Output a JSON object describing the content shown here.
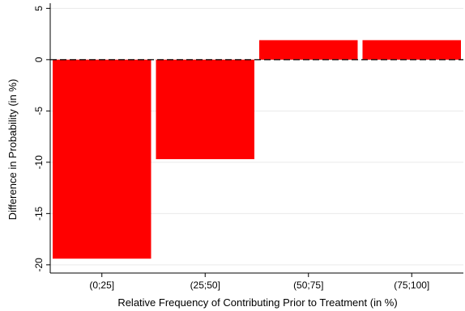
{
  "chart_data": {
    "type": "bar",
    "title": "",
    "xlabel": "Relative Frequency of Contributing Prior to Treatment (in %)",
    "ylabel": "Difference in Probability (in %)",
    "categories": [
      "(0;25]",
      "(25;50]",
      "(50;75]",
      "(75;100]"
    ],
    "values": [
      -19.4,
      -9.7,
      1.9,
      1.9
    ],
    "ylim": [
      -20.8,
      5.5
    ],
    "yticks": [
      5,
      0,
      -5,
      -10,
      -15,
      -20
    ],
    "ytick_labels": [
      "5",
      "0",
      "-5",
      "-10",
      "-15",
      "-20"
    ],
    "grid": "horizontal",
    "reference_line": {
      "y": 0,
      "style": "dashed"
    },
    "bar_color": "#ff0000",
    "legend": "none"
  }
}
